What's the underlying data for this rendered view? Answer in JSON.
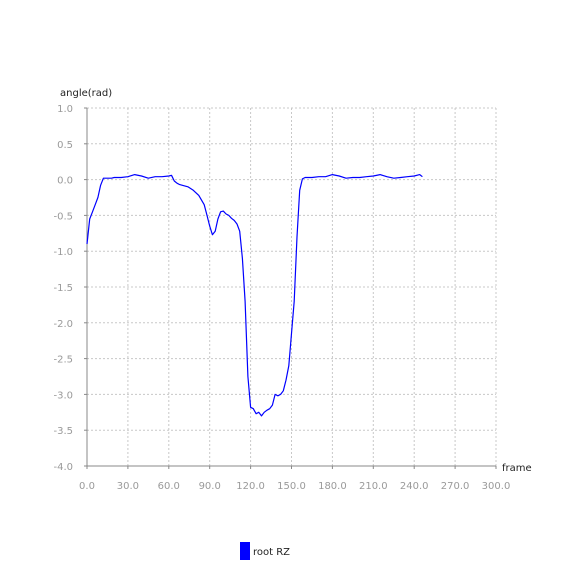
{
  "chart_data": {
    "type": "line",
    "title": "",
    "xlabel": "frame",
    "ylabel": "angle(rad)",
    "xlim": [
      0,
      300
    ],
    "ylim": [
      -4.0,
      1.0
    ],
    "x_ticks": [
      "0.0",
      "30.0",
      "60.0",
      "90.0",
      "120.0",
      "150.0",
      "180.0",
      "210.0",
      "240.0",
      "270.0",
      "300.0"
    ],
    "y_ticks": [
      "1.0",
      "0.5",
      "0.0",
      "-0.5",
      "-1.0",
      "-1.5",
      "-2.0",
      "-2.5",
      "-3.0",
      "-3.5",
      "-4.0"
    ],
    "grid": true,
    "legend_position": "bottom-center",
    "series": [
      {
        "name": "root RZ",
        "color": "#0000ff",
        "x": [
          0,
          2,
          4,
          6,
          8,
          10,
          12,
          15,
          18,
          20,
          25,
          30,
          35,
          40,
          45,
          50,
          55,
          60,
          62,
          64,
          66,
          68,
          70,
          74,
          78,
          82,
          86,
          88,
          90,
          92,
          94,
          96,
          98,
          100,
          102,
          104,
          106,
          108,
          110,
          112,
          114,
          116,
          118,
          120,
          122,
          124,
          126,
          128,
          130,
          132,
          134,
          136,
          138,
          140,
          142,
          144,
          146,
          148,
          150,
          152,
          154,
          156,
          158,
          160,
          165,
          170,
          175,
          180,
          185,
          190,
          195,
          200,
          205,
          210,
          215,
          220,
          225,
          230,
          235,
          240,
          244,
          246
        ],
        "y": [
          -0.9,
          -0.55,
          -0.45,
          -0.35,
          -0.25,
          -0.08,
          0.02,
          0.02,
          0.02,
          0.03,
          0.03,
          0.04,
          0.07,
          0.05,
          0.02,
          0.04,
          0.04,
          0.05,
          0.06,
          -0.02,
          -0.05,
          -0.07,
          -0.08,
          -0.1,
          -0.15,
          -0.22,
          -0.35,
          -0.5,
          -0.65,
          -0.77,
          -0.72,
          -0.55,
          -0.45,
          -0.44,
          -0.48,
          -0.5,
          -0.54,
          -0.57,
          -0.62,
          -0.72,
          -1.1,
          -1.7,
          -2.75,
          -3.18,
          -3.2,
          -3.27,
          -3.25,
          -3.3,
          -3.25,
          -3.22,
          -3.2,
          -3.15,
          -3.0,
          -3.02,
          -3.0,
          -2.95,
          -2.8,
          -2.6,
          -2.15,
          -1.7,
          -0.8,
          -0.15,
          0.01,
          0.03,
          0.03,
          0.04,
          0.04,
          0.07,
          0.05,
          0.02,
          0.03,
          0.03,
          0.04,
          0.05,
          0.07,
          0.04,
          0.02,
          0.03,
          0.04,
          0.05,
          0.07,
          0.04
        ]
      }
    ]
  }
}
